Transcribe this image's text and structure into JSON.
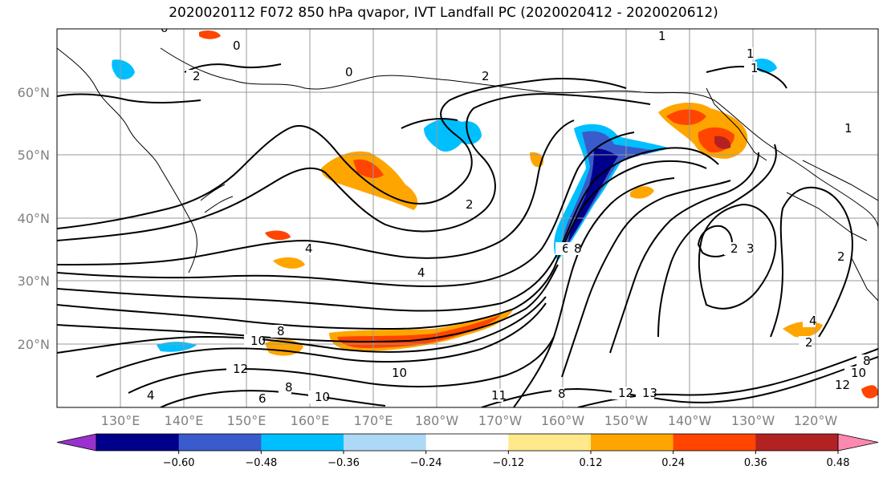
{
  "title": "2020020112 F072 850 hPa qvapor, IVT Landfall PC (2020020412 - 2020020612)",
  "map": {
    "lat_labels": [
      "60°N",
      "50°N",
      "40°N",
      "30°N",
      "20°N"
    ],
    "lon_labels": [
      "130°E",
      "140°E",
      "150°E",
      "160°E",
      "170°E",
      "180°W",
      "170°W",
      "160°W",
      "150°W",
      "140°W",
      "130°W",
      "120°W"
    ],
    "contour_labels": [
      "0",
      "0",
      "1",
      "0",
      "1",
      "2",
      "2",
      "4",
      "6",
      "8",
      "2",
      "3",
      "4",
      "10",
      "8",
      "10",
      "11",
      "12",
      "13",
      "4",
      "6",
      "8",
      "10",
      "12",
      "4",
      "2",
      "8",
      "12",
      "10",
      "8",
      "2",
      "1",
      "1",
      "2"
    ]
  },
  "colorbar": {
    "ticks": [
      "−0.60",
      "−0.48",
      "−0.36",
      "−0.24",
      "−0.12",
      "0.12",
      "0.24",
      "0.36",
      "0.48",
      "0.60"
    ],
    "colors": [
      "#9932cc",
      "#00008b",
      "#3a5bcb",
      "#00bfff",
      "#add8f6",
      "#ffffff",
      "#ffe98a",
      "#ffa500",
      "#ff4500",
      "#b22222",
      "#ff88b0"
    ],
    "levels": [
      -0.72,
      -0.6,
      -0.48,
      -0.36,
      -0.24,
      -0.12,
      0.12,
      0.24,
      0.36,
      0.48,
      0.6,
      0.72
    ]
  }
}
